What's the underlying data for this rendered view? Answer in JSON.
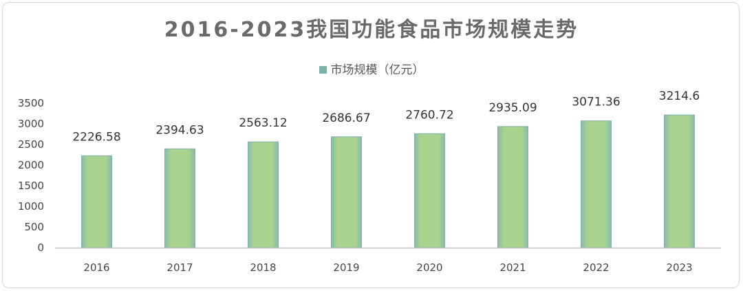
{
  "chart_data": {
    "type": "bar",
    "title": "2016-2023我国功能食品市场规模走势",
    "legend": {
      "position": "top",
      "entries": [
        "市场规模（亿元）"
      ]
    },
    "categories": [
      "2016",
      "2017",
      "2018",
      "2019",
      "2020",
      "2021",
      "2022",
      "2023"
    ],
    "series": [
      {
        "name": "市场规模（亿元）",
        "values": [
          2226.58,
          2394.63,
          2563.12,
          2686.67,
          2760.72,
          2935.09,
          3071.36,
          3214.6
        ],
        "data_labels": [
          "2226.58",
          "2394.63",
          "2563.12",
          "2686.67",
          "2760.72",
          "2935.09",
          "3071.36",
          "3214.6"
        ]
      }
    ],
    "ylim": [
      0,
      3500
    ],
    "yticks": [
      "0",
      "500",
      "1000",
      "1500",
      "2000",
      "2500",
      "3000",
      "3500"
    ],
    "grid": false,
    "colors": {
      "bar_fill": "#a6d08a",
      "bar_edge": "#7fb0aa",
      "legend_swatch": "#7fb0aa",
      "axis": "#bfbfbf",
      "title": "#6a6a6a"
    }
  }
}
